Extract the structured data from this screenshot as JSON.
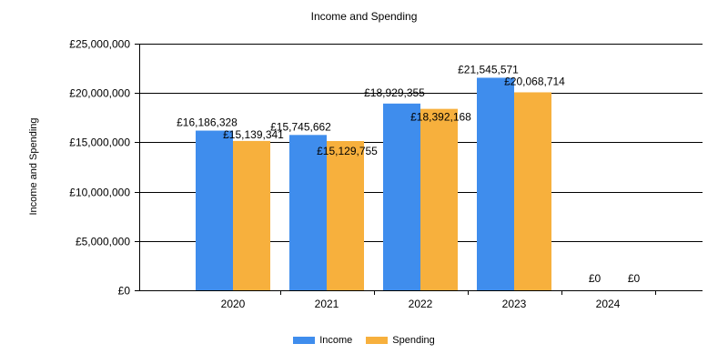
{
  "chart_data": {
    "type": "bar",
    "title": "Income and Spending",
    "xlabel": "",
    "ylabel": "Income and Spending",
    "categories": [
      "2020",
      "2021",
      "2022",
      "2023",
      "2024"
    ],
    "series": [
      {
        "name": "Income",
        "color": "#3f8ded",
        "values": [
          16186328,
          15745662,
          18929355,
          21545571,
          0
        ],
        "labels": [
          "£16,186,328",
          "£15,745,662",
          "£18,929,355",
          "£21,545,571",
          "£0"
        ]
      },
      {
        "name": "Spending",
        "color": "#f7b03d",
        "values": [
          15139341,
          15129755,
          18392168,
          20068714,
          0
        ],
        "labels": [
          "£15,139,341",
          "£15,129,755",
          "£18,392,168",
          "£20,068,714",
          "£0"
        ]
      }
    ],
    "ylim": [
      0,
      25000000
    ],
    "yticks": [
      0,
      5000000,
      10000000,
      15000000,
      20000000,
      25000000
    ],
    "ytick_labels": [
      "£0",
      "£5,000,000",
      "£10,000,000",
      "£15,000,000",
      "£20,000,000",
      "£25,000,000"
    ],
    "grid": true,
    "legend_position": "bottom-center"
  }
}
